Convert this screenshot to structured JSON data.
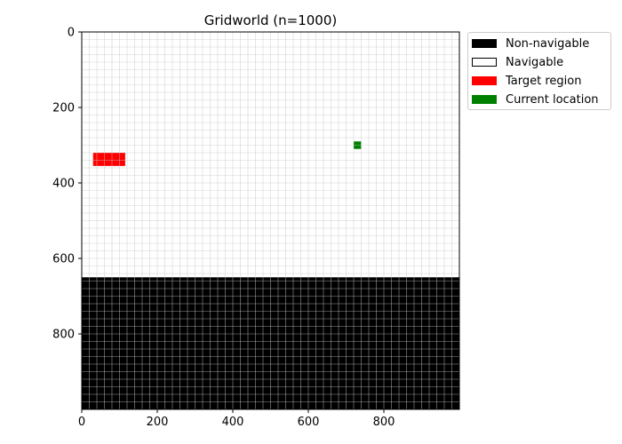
{
  "chart_data": {
    "type": "heatmap",
    "title": "Gridworld (n=1000)",
    "grid_size": 1000,
    "cell_size": 20,
    "xlim": [
      0,
      1000
    ],
    "ylim": [
      1000,
      0
    ],
    "y_inverted": true,
    "grid": true,
    "xticks": [
      0,
      200,
      400,
      600,
      800
    ],
    "yticks": [
      0,
      200,
      400,
      600,
      800
    ],
    "xlabel": "",
    "ylabel": "",
    "regions": [
      {
        "name": "Non-navigable",
        "x": [
          0,
          1000
        ],
        "y": [
          650,
          1000
        ]
      },
      {
        "name": "Target region",
        "x": [
          30,
          115
        ],
        "y": [
          320,
          355
        ]
      },
      {
        "name": "Current location",
        "x": [
          720,
          740
        ],
        "y": [
          290,
          310
        ]
      }
    ],
    "legend": {
      "placement": "upper-right-outside",
      "items": [
        {
          "label": "Non-navigable",
          "fill": "#000000",
          "edge": "#000000"
        },
        {
          "label": "Navigable",
          "fill": "#ffffff",
          "edge": "#000000"
        },
        {
          "label": "Target region",
          "fill": "#ff0000",
          "edge": "#ff0000"
        },
        {
          "label": "Current location",
          "fill": "#008000",
          "edge": "#008000"
        }
      ]
    },
    "colors": {
      "non_navigable": "#000000",
      "navigable": "#ffffff",
      "target": "#ff0000",
      "current": "#008000",
      "grid_line": "#c8c8c8"
    }
  }
}
